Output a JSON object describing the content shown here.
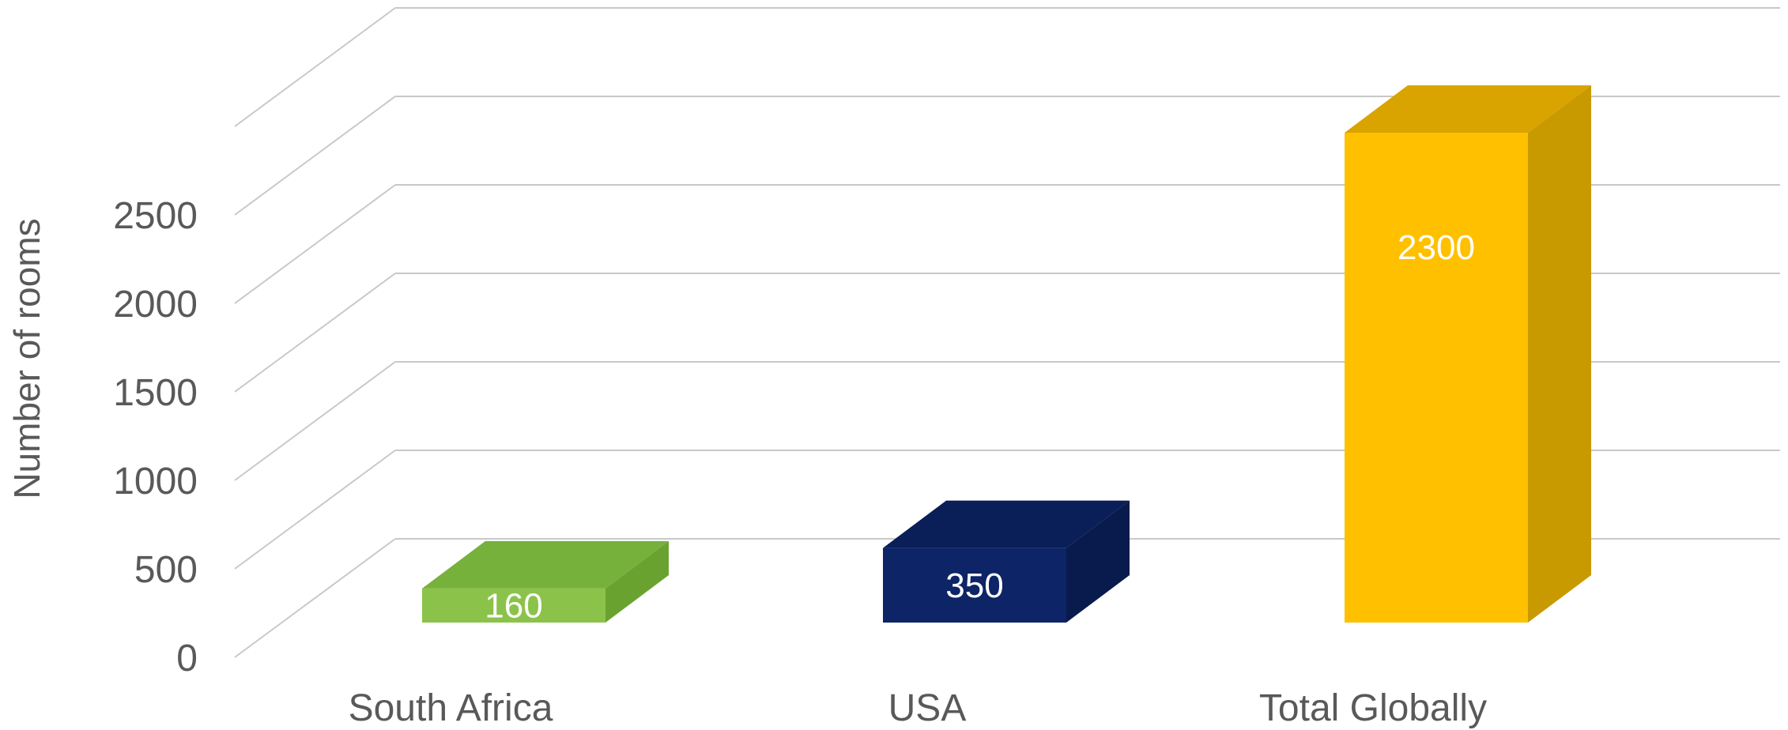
{
  "chart_data": {
    "type": "bar",
    "style": "3d-column",
    "categories": [
      "South Africa",
      "USA",
      "Total Globally"
    ],
    "values": [
      160,
      350,
      2300
    ],
    "data_labels": [
      "160",
      "350",
      "2300"
    ],
    "colors": [
      "#8bc34a",
      "#0d2466",
      "#ffc000"
    ],
    "side_colors": [
      "#6aa22f",
      "#091a4d",
      "#c99a00"
    ],
    "top_colors": [
      "#76b13c",
      "#0a1e57",
      "#d9a400"
    ],
    "ylabel": "Number of rooms",
    "ylim": [
      0,
      3000
    ],
    "yticks": [
      "0",
      "500",
      "1000",
      "1500",
      "2000",
      "2500"
    ],
    "grid": true,
    "legend": "none"
  }
}
